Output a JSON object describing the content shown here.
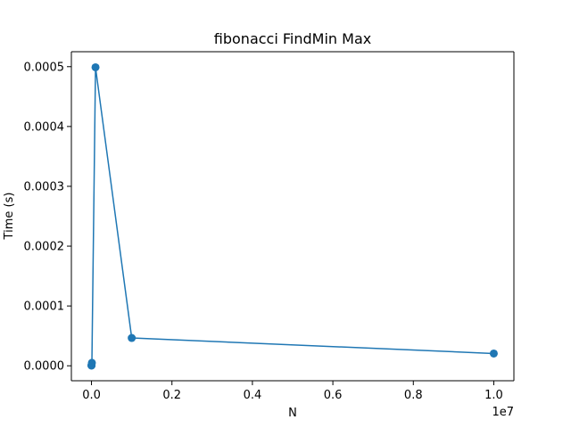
{
  "chart_data": {
    "type": "line",
    "title": "fibonacci FindMin Max",
    "xlabel": "N",
    "ylabel": "Time (s)",
    "x_offset_label": "1e7",
    "x": [
      10,
      100,
      1000,
      10000,
      100000,
      1000000,
      10000000
    ],
    "y": [
      5e-07,
      6e-07,
      8e-07,
      5e-06,
      0.000499,
      4.65e-05,
      2.05e-05
    ],
    "xlim": [
      -500000,
      10500000
    ],
    "ylim": [
      -2.5e-05,
      0.000525
    ],
    "x_ticks": [
      {
        "value": 0,
        "label": "0.0"
      },
      {
        "value": 2000000,
        "label": "0.2"
      },
      {
        "value": 4000000,
        "label": "0.4"
      },
      {
        "value": 6000000,
        "label": "0.6"
      },
      {
        "value": 8000000,
        "label": "0.8"
      },
      {
        "value": 10000000,
        "label": "1.0"
      }
    ],
    "y_ticks": [
      {
        "value": 0,
        "label": "0.0000"
      },
      {
        "value": 0.0001,
        "label": "0.0001"
      },
      {
        "value": 0.0002,
        "label": "0.0002"
      },
      {
        "value": 0.0003,
        "label": "0.0003"
      },
      {
        "value": 0.0004,
        "label": "0.0004"
      },
      {
        "value": 0.0005,
        "label": "0.0005"
      }
    ],
    "grid": false,
    "line_color": "#1f77b4",
    "marker": "circle"
  }
}
